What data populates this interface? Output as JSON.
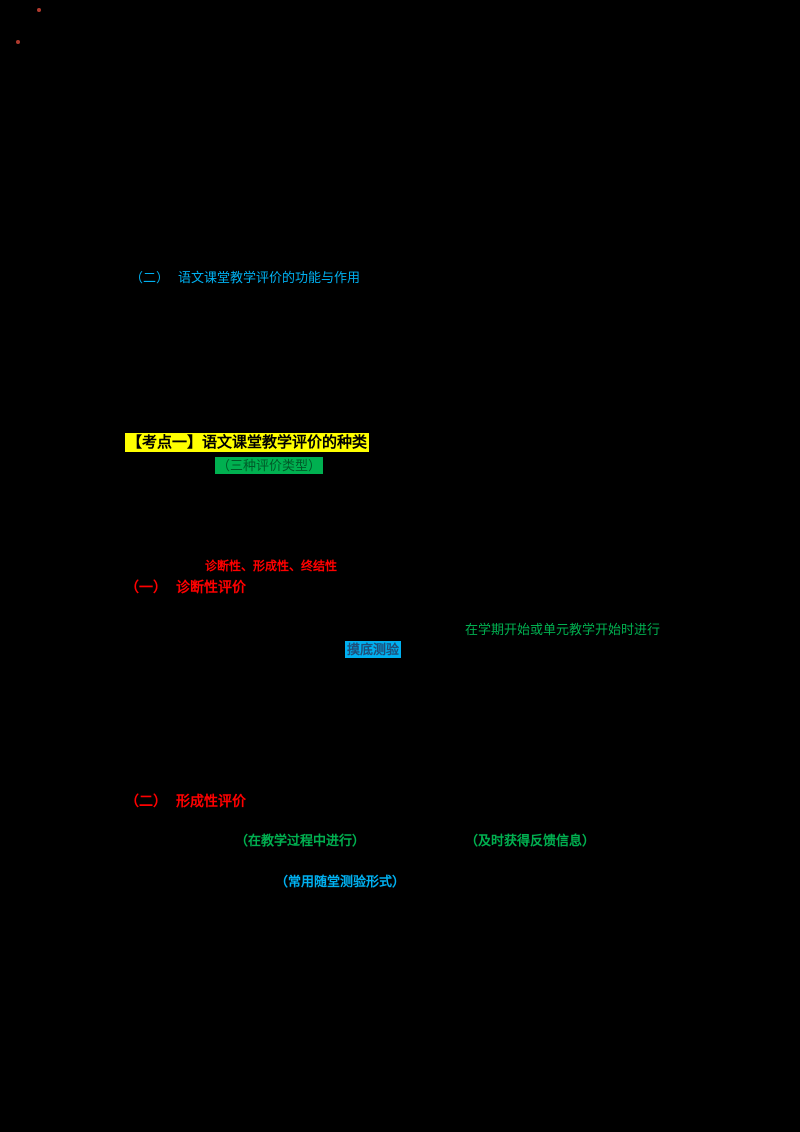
{
  "page": {
    "background": "#000000"
  },
  "colors": {
    "blue_text": "#00B0F0",
    "red_text": "#FF0000",
    "green_text": "#00B050",
    "yellow_highlight": "#FFFF00",
    "green_highlight": "#00B050",
    "blue_highlight": "#00B0F0",
    "text_on_yellow": "#000000"
  },
  "content": {
    "section2": {
      "number": "（二）",
      "title": "语文课堂教学评价的功能与作用"
    },
    "exam_point1": {
      "heading": "【考点一】语文课堂教学评价的种类",
      "note": "（三种评价类型）"
    },
    "types_note": "诊断性、形成性、终结性",
    "diagnostic": {
      "number": "（一）",
      "title": "诊断性评价",
      "time_note": "在学期开始或单元教学开始时进行",
      "term": "摸底测验"
    },
    "formative": {
      "number": "（二）",
      "title": "形成性评价",
      "time_note": "（在教学过程中进行）",
      "feedback_note": "（及时获得反馈信息）",
      "form_note": "（常用随堂测验形式）"
    }
  }
}
